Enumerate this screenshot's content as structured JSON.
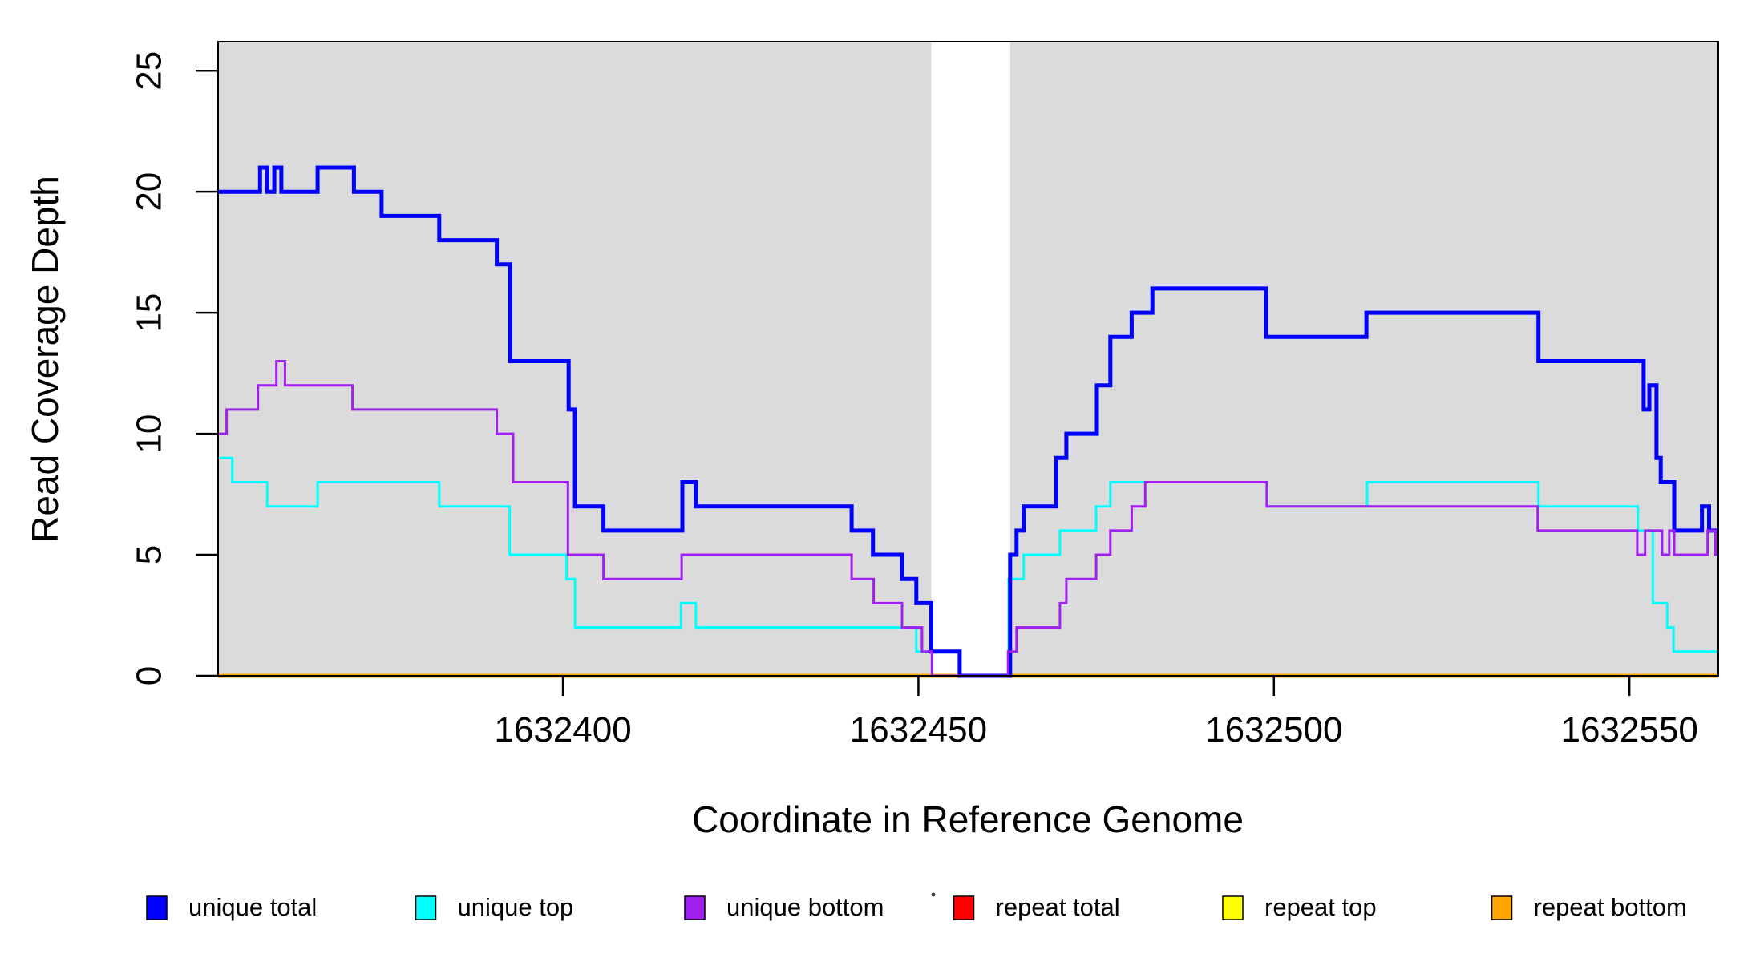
{
  "chart_data": {
    "type": "line",
    "subtype": "step",
    "title": "",
    "xlabel": "Coordinate in Reference Genome",
    "ylabel": "Read Coverage Depth",
    "xlim": [
      1632351.5,
      1632562.5
    ],
    "ylim": [
      0,
      26.2
    ],
    "x_ticks": [
      1632400,
      1632450,
      1632500,
      1632550
    ],
    "y_ticks": [
      0,
      5,
      10,
      15,
      20,
      25
    ],
    "grid": false,
    "plot_background": "#FFFFFF",
    "shaded_band_color": "#DBDBDB",
    "shaded_regions": [
      {
        "x0": 1632351.5,
        "x1": 1632451.8
      },
      {
        "x0": 1632462.9,
        "x1": 1632562.5
      }
    ],
    "series": [
      {
        "name": "repeat total",
        "color": "#FF0000",
        "width": 3,
        "steps": [
          [
            1632351.5,
            0
          ]
        ]
      },
      {
        "name": "repeat top",
        "color": "#FFFF00",
        "width": 3,
        "steps": [
          [
            1632351.5,
            0
          ]
        ]
      },
      {
        "name": "repeat bottom",
        "color": "#FFA500",
        "width": 5,
        "steps": [
          [
            1632351.5,
            0
          ]
        ]
      },
      {
        "name": "unique top",
        "color": "#00FFFF",
        "width": 3,
        "steps": [
          [
            1632351.5,
            9
          ],
          [
            1632353.5,
            8
          ],
          [
            1632358.4,
            7
          ],
          [
            1632365.5,
            8
          ],
          [
            1632382.6,
            7
          ],
          [
            1632392.5,
            5
          ],
          [
            1632400.5,
            4
          ],
          [
            1632401.7,
            2
          ],
          [
            1632416.6,
            3
          ],
          [
            1632418.7,
            2
          ],
          [
            1632449.7,
            1
          ],
          [
            1632455.8,
            0
          ],
          [
            1632462.7,
            4
          ],
          [
            1632464.8,
            5
          ],
          [
            1632469.9,
            6
          ],
          [
            1632475.0,
            7
          ],
          [
            1632477.0,
            8
          ],
          [
            1632499.0,
            7
          ],
          [
            1632513.1,
            8
          ],
          [
            1632537.2,
            7
          ],
          [
            1632551.2,
            6
          ],
          [
            1632553.3,
            3
          ],
          [
            1632555.3,
            2
          ],
          [
            1632556.2,
            1
          ]
        ]
      },
      {
        "name": "unique total",
        "color": "#0000FF",
        "width": 5,
        "steps": [
          [
            1632351.5,
            20
          ],
          [
            1632357.4,
            21
          ],
          [
            1632358.4,
            20
          ],
          [
            1632359.4,
            21
          ],
          [
            1632360.4,
            20
          ],
          [
            1632365.5,
            21
          ],
          [
            1632370.6,
            20
          ],
          [
            1632374.5,
            19
          ],
          [
            1632382.6,
            18
          ],
          [
            1632390.7,
            17
          ],
          [
            1632392.6,
            13
          ],
          [
            1632400.8,
            11
          ],
          [
            1632401.7,
            7
          ],
          [
            1632405.7,
            6
          ],
          [
            1632416.8,
            8
          ],
          [
            1632418.7,
            7
          ],
          [
            1632440.6,
            6
          ],
          [
            1632443.6,
            5
          ],
          [
            1632447.7,
            4
          ],
          [
            1632449.7,
            3
          ],
          [
            1632451.8,
            1
          ],
          [
            1632455.8,
            0
          ],
          [
            1632462.9,
            5
          ],
          [
            1632463.8,
            6
          ],
          [
            1632464.8,
            7
          ],
          [
            1632469.4,
            9
          ],
          [
            1632470.8,
            10
          ],
          [
            1632475.1,
            12
          ],
          [
            1632477.0,
            14
          ],
          [
            1632480.0,
            15
          ],
          [
            1632482.9,
            16
          ],
          [
            1632498.9,
            14
          ],
          [
            1632513.0,
            15
          ],
          [
            1632537.2,
            13
          ],
          [
            1632552.0,
            11
          ],
          [
            1632552.8,
            12
          ],
          [
            1632553.8,
            9
          ],
          [
            1632554.4,
            8
          ],
          [
            1632556.3,
            6
          ],
          [
            1632560.2,
            7
          ],
          [
            1632561.2,
            6
          ]
        ]
      },
      {
        "name": "unique bottom",
        "color": "#A020F0",
        "width": 3,
        "steps": [
          [
            1632351.5,
            10
          ],
          [
            1632352.7,
            11
          ],
          [
            1632357.1,
            12
          ],
          [
            1632359.7,
            13
          ],
          [
            1632360.9,
            12
          ],
          [
            1632370.4,
            11
          ],
          [
            1632390.7,
            10
          ],
          [
            1632393.0,
            8
          ],
          [
            1632400.7,
            5
          ],
          [
            1632405.7,
            4
          ],
          [
            1632416.7,
            5
          ],
          [
            1632440.6,
            4
          ],
          [
            1632443.7,
            3
          ],
          [
            1632447.7,
            2
          ],
          [
            1632450.5,
            1
          ],
          [
            1632451.9,
            0
          ],
          [
            1632462.6,
            1
          ],
          [
            1632463.8,
            2
          ],
          [
            1632469.9,
            3
          ],
          [
            1632470.8,
            4
          ],
          [
            1632475.0,
            5
          ],
          [
            1632477.0,
            6
          ],
          [
            1632480.0,
            7
          ],
          [
            1632481.9,
            8
          ],
          [
            1632499.0,
            7
          ],
          [
            1632537.1,
            6
          ],
          [
            1632551.1,
            5
          ],
          [
            1632552.2,
            6
          ],
          [
            1632554.6,
            5
          ],
          [
            1632555.6,
            6
          ],
          [
            1632556.3,
            5
          ],
          [
            1632561.0,
            6
          ],
          [
            1632562.1,
            5
          ]
        ]
      }
    ],
    "legend": {
      "position": "bottom",
      "items": [
        "unique total",
        "unique top",
        "unique bottom",
        "repeat total",
        "repeat top",
        "repeat bottom"
      ]
    }
  }
}
